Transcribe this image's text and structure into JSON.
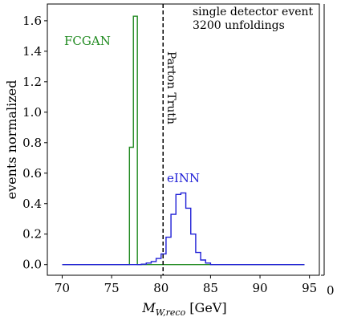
{
  "chart_data": {
    "type": "line",
    "title": "",
    "xlabel_main": "M",
    "xlabel_sub": "W,reco",
    "xlabel_unit": " [GeV]",
    "ylabel": "events normalized",
    "xlim": [
      68.5,
      96
    ],
    "ylim": [
      -0.07,
      1.71
    ],
    "xticks": [
      70,
      75,
      80,
      85,
      90,
      95
    ],
    "yticks": [
      0.0,
      0.2,
      0.4,
      0.6,
      0.8,
      1.0,
      1.2,
      1.4,
      1.6
    ],
    "annotations": [
      "single detector event",
      "3200 unfoldings"
    ],
    "parton_truth": {
      "label": "Parton Truth",
      "x": 80.2
    },
    "right_partial_label": "0",
    "series": [
      {
        "name": "FCGAN",
        "color": "#228b22",
        "edges": [
          70.0,
          76.8,
          77.2,
          77.6,
          94.5
        ],
        "values": [
          0.0,
          0.77,
          1.63,
          0.0
        ]
      },
      {
        "name": "eINN",
        "color": "#1f1fd6",
        "edges": [
          70.0,
          78.0,
          78.5,
          79.0,
          79.5,
          80.0,
          80.5,
          81.0,
          81.5,
          82.0,
          82.5,
          83.0,
          83.5,
          84.0,
          84.5,
          85.0,
          94.5
        ],
        "values": [
          0.0,
          0.003,
          0.01,
          0.02,
          0.04,
          0.07,
          0.18,
          0.33,
          0.46,
          0.47,
          0.37,
          0.2,
          0.08,
          0.03,
          0.01,
          0.0
        ]
      }
    ]
  }
}
